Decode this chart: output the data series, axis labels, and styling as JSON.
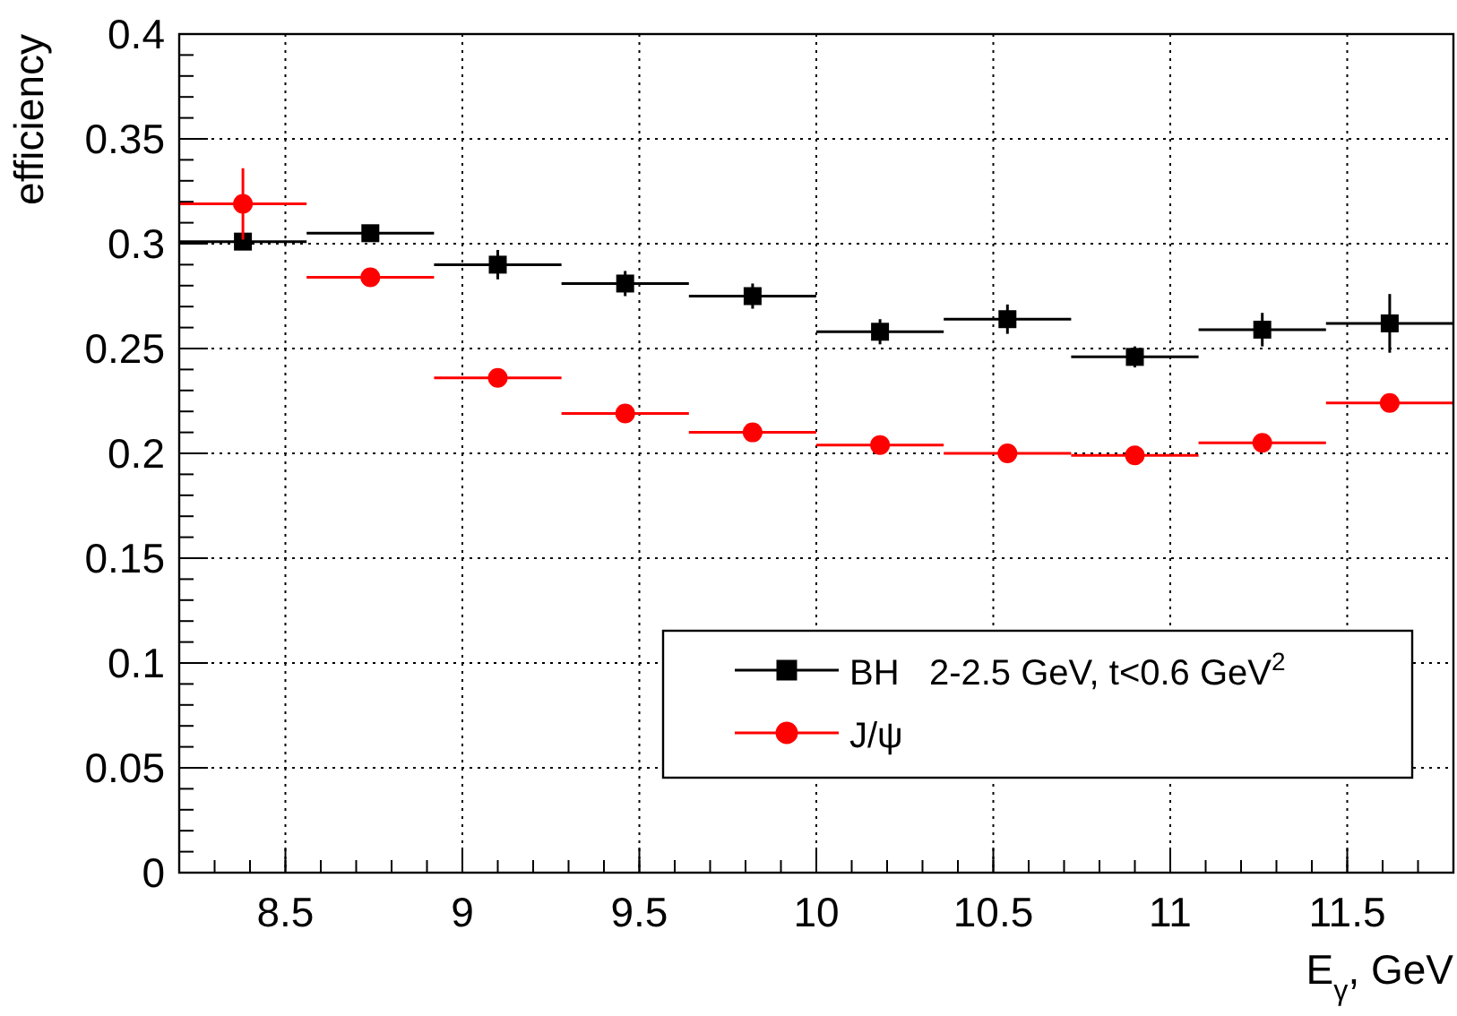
{
  "chart_data": {
    "type": "scatter",
    "xlabel": "E$_{γ}$, GeV",
    "ylabel": "efficiency",
    "x": [
      8.38,
      8.74,
      9.1,
      9.46,
      9.82,
      10.18,
      10.54,
      10.9,
      11.26,
      11.62
    ],
    "xlim": [
      8.2,
      11.8
    ],
    "xticks": [
      8.5,
      9,
      9.5,
      10,
      10.5,
      11,
      11.5
    ],
    "ylim": [
      0,
      0.4
    ],
    "yticks": [
      0,
      0.05,
      0.1,
      0.15,
      0.2,
      0.25,
      0.3,
      0.35,
      0.4
    ],
    "grid": true,
    "legend": "bottom right",
    "series": [
      {
        "name": "BH   2-2.5 GeV, t<0.6 GeV$^{2}$",
        "color": "#000000",
        "marker": "square",
        "values": [
          0.301,
          0.305,
          0.29,
          0.281,
          0.275,
          0.258,
          0.264,
          0.246,
          0.259,
          0.262
        ],
        "errors": [
          0.003,
          0.003,
          0.007,
          0.006,
          0.006,
          0.006,
          0.007,
          0.005,
          0.008,
          0.014
        ],
        "xerrors": [
          0.18,
          0.18,
          0.18,
          0.18,
          0.18,
          0.18,
          0.18,
          0.18,
          0.18,
          0.18
        ]
      },
      {
        "name": "J/ψ",
        "color": "#ff0000",
        "marker": "circle",
        "values": [
          0.319,
          0.284,
          0.236,
          0.219,
          0.21,
          0.204,
          0.2,
          0.199,
          0.205,
          0.224
        ],
        "errors": [
          0.017,
          0.004,
          null,
          null,
          null,
          null,
          null,
          null,
          null,
          null
        ],
        "xerrors": [
          0.18,
          0.18,
          0.18,
          0.18,
          0.18,
          0.18,
          0.18,
          0.18,
          0.18,
          0.18
        ]
      }
    ]
  }
}
